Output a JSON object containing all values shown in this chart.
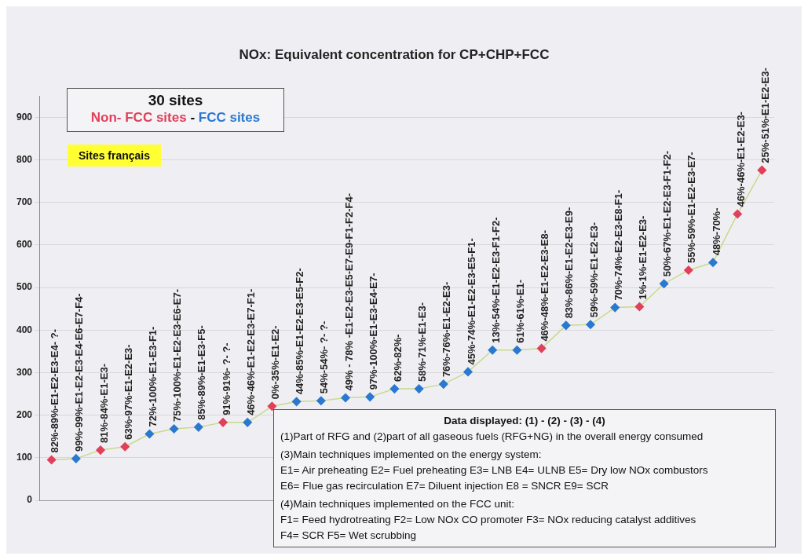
{
  "chart_data": {
    "type": "line",
    "title": "NOx: Equivalent concentration for CP+CHP+FCC",
    "categories": [
      "82%-89%-E1-E2-E3-E4- ?-",
      "99%-99%-E1-E2-E3-E4-E6-E7-F4-",
      "81%-84%-E1-E3-",
      "63%-97%-E1-E2-E3-",
      "72%-100%-E1-E3-F1-",
      "75%-100%-E1-E2-E3-E6-E7-",
      "85%-89%-E1-E3-F5-",
      "91%-91%- ?- ?-",
      "46%-46%-E1-E2-E3-E7-F1-",
      "0%-35%-E1-E2-",
      "44%-85%-E1-E2-E3-E5-F2-",
      "54%-54%- ?- ?-",
      "49% - 78% -E1-E2-E3-E5-E7-E9-F1-F2-F4-",
      "97%-100%-E1-E3-E4-E7-",
      "62%-82%-",
      "58%-71%-E1-E3-",
      "76%-76%-E1-E2-E3-",
      "45%-74%-E1-E2-E3-E5-F1-",
      "13%-54%-E1-E2-E3-F1-F2-",
      "61%-61%-E1-",
      "46%-48%-E1-E2-E3-E8-",
      "83%-86%-E1-E2-E3-E9-",
      "59%-59%-E1-E2-E3-",
      "70%-74%-E2-E3-E8-F1-",
      "1%-1%-E1-E2-E3-",
      "50%-67%-E1-E2-E3-F1-F2-",
      "55%-59%-E1-E2-E3-E7-",
      "48%-70%-",
      "46%-46%-E1-E2-E3-",
      "25%-51%-E1-E2-E3-"
    ],
    "series": [
      {
        "color": "#c9d98c",
        "values": [
          95,
          98,
          118,
          126,
          156,
          168,
          172,
          183,
          183,
          221,
          232,
          234,
          241,
          243,
          262,
          262,
          273,
          302,
          353,
          353,
          357,
          411,
          413,
          453,
          455,
          509,
          541,
          559,
          673,
          776
        ],
        "colors": [
          "#e0405a",
          "#2a78d0",
          "#e0405a",
          "#e0405a",
          "#2a78d0",
          "#2a78d0",
          "#2a78d0",
          "#e0405a",
          "#2a78d0",
          "#e0405a",
          "#2a78d0",
          "#2a78d0",
          "#2a78d0",
          "#2a78d0",
          "#2a78d0",
          "#2a78d0",
          "#2a78d0",
          "#2a78d0",
          "#2a78d0",
          "#2a78d0",
          "#e0405a",
          "#2a78d0",
          "#2a78d0",
          "#2a78d0",
          "#e0405a",
          "#2a78d0",
          "#e0405a",
          "#2a78d0",
          "#e0405a",
          "#e0405a"
        ]
      }
    ],
    "ylim": [
      0,
      950
    ],
    "yticks": [
      0,
      100,
      200,
      300,
      400,
      500,
      600,
      700,
      800,
      900
    ],
    "grid": "y",
    "marker": "diamond",
    "annotations": [
      "30 sites",
      "Non- FCC sites",
      "-",
      "FCC sites",
      "Sites français",
      "Data displayed: (1) - (2) - (3) - (4)",
      "(1)Part of RFG and (2)part of all gaseous fuels (RFG+NG) in the overall energy consumed",
      "(3)Main techniques implemented on the energy system:",
      "E1= Air preheating E2= Fuel preheating E3= LNB E4= ULNB E5= Dry low NOx combustors",
      "E6= Flue gas recirculation E7= Diluent injection E8 = SNCR E9= SCR",
      "(4)Main techniques implemented on the FCC unit:",
      "F1= Feed hydrotreating F2= Low NOx CO promoter F3= NOx reducing catalyst additives",
      "F4= SCR F5= Wet scrubbing"
    ]
  }
}
